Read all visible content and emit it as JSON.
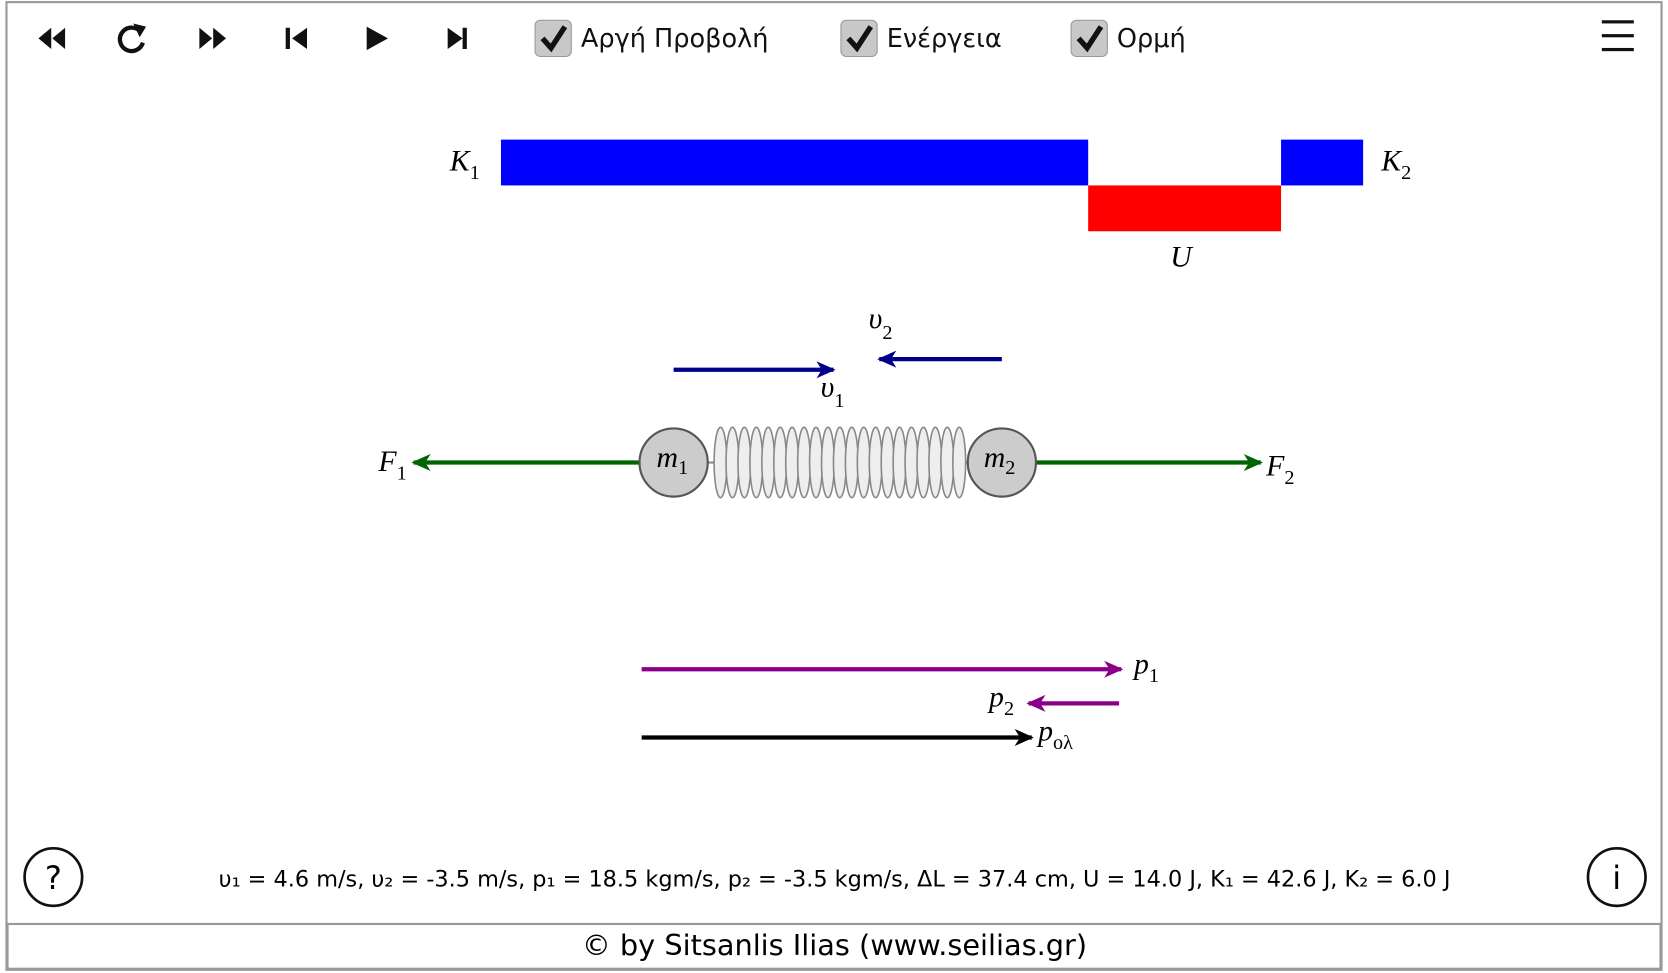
{
  "toolbar": {
    "checkboxes": [
      "Αργή Προβολή",
      "Ενέργεια",
      "Ορμή"
    ]
  },
  "energy": {
    "k1": {
      "base": "K",
      "sub": "1"
    },
    "k2": {
      "base": "K",
      "sub": "2"
    },
    "u": "U"
  },
  "scene": {
    "v1": {
      "base": "υ",
      "sub": "1"
    },
    "v2": {
      "base": "υ",
      "sub": "2"
    },
    "f1": {
      "base": "F",
      "sub": "1"
    },
    "f2": {
      "base": "F",
      "sub": "2"
    },
    "m1": {
      "base": "m",
      "sub": "1"
    },
    "m2": {
      "base": "m",
      "sub": "2"
    },
    "p1": {
      "base": "p",
      "sub": "1"
    },
    "p2": {
      "base": "p",
      "sub": "2"
    },
    "ptot": {
      "base": "p",
      "sub": "ολ"
    }
  },
  "help": "?",
  "info": "i",
  "status": "υ₁ = 4.6 m/s, υ₂ = -3.5 m/s, p₁ = 18.5 kgm/s, p₂ = -3.5 kgm/s, ΔL = 37.4 cm, U = 14.0 J, K₁ = 42.6 J, K₂ = 6.0 J",
  "footer": "© by Sitsanlis Ilias (www.seilias.gr)"
}
